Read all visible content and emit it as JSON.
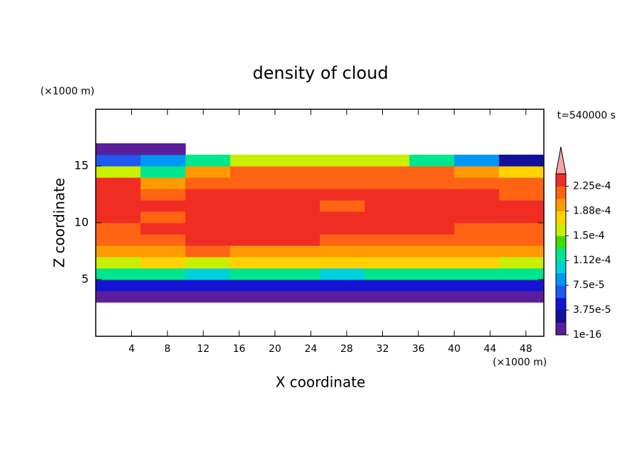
{
  "chart_data": {
    "type": "contour",
    "title": "density of cloud",
    "xlabel": "X coordinate",
    "ylabel": "Z coordinate",
    "x_unit": "(×1000 m)",
    "y_unit": "(×1000 m)",
    "annotation": "t=540000 s",
    "xlim": [
      0,
      50
    ],
    "ylim": [
      0,
      20
    ],
    "xticks": [
      4,
      8,
      12,
      16,
      20,
      24,
      28,
      32,
      36,
      40,
      44,
      48
    ],
    "yticks": [
      5,
      10,
      15
    ],
    "levels": [
      1e-16,
      1.875e-05,
      3.75e-05,
      5.625e-05,
      7.5e-05,
      9.375e-05,
      0.000112,
      0.000131,
      0.00015,
      0.000169,
      0.000188,
      0.000206,
      0.000225,
      0.000244
    ],
    "colors": [
      "#5a1e9c",
      "#14109a",
      "#1414d2",
      "#1e5af0",
      "#0096f5",
      "#00d2dc",
      "#00e68c",
      "#3cdc00",
      "#c8f000",
      "#ffd200",
      "#ff9b00",
      "#ff6414",
      "#f02d23"
    ],
    "extend_color": "#f5a5a5",
    "cticks": [
      {
        "value": 1e-16,
        "label": "1e-16"
      },
      {
        "value": 3.75e-05,
        "label": "3.75e-5"
      },
      {
        "value": 7.5e-05,
        "label": "7.5e-5"
      },
      {
        "value": 0.000112,
        "label": "1.12e-4"
      },
      {
        "value": 0.00015,
        "label": "1.5e-4"
      },
      {
        "value": 0.000188,
        "label": "1.88e-4"
      },
      {
        "value": 0.000225,
        "label": "2.25e-4"
      }
    ],
    "x": [
      2.5,
      7.5,
      12.5,
      17.5,
      22.5,
      27.5,
      32.5,
      37.5,
      42.5,
      47.5
    ],
    "z": [
      3.5,
      4.5,
      5.5,
      6.5,
      7.5,
      8.5,
      9.5,
      10.5,
      11.5,
      12.5,
      13.5,
      14.5,
      15.5,
      16.5
    ],
    "values": [
      [
        1e-05,
        1e-05,
        1e-05,
        1e-05,
        1e-05,
        1e-05,
        1e-05,
        1e-05,
        1e-05,
        1e-05
      ],
      [
        5e-05,
        5e-05,
        4e-05,
        5e-05,
        5e-05,
        5e-05,
        5e-05,
        5e-05,
        5e-05,
        5e-05
      ],
      [
        0.00012,
        0.00012,
        0.0001,
        0.00012,
        0.00012,
        0.00011,
        0.00012,
        0.00012,
        0.00012,
        0.00012
      ],
      [
        0.00016,
        0.00017,
        0.00015,
        0.00017,
        0.00017,
        0.00017,
        0.00017,
        0.00017,
        0.00017,
        0.00016
      ],
      [
        0.00019,
        0.0002,
        0.00021,
        0.0002,
        0.0002,
        0.0002,
        0.0002,
        0.0002,
        0.0002,
        0.00019
      ],
      [
        0.00021,
        0.00022,
        0.00023,
        0.00023,
        0.00023,
        0.00022,
        0.00022,
        0.00022,
        0.00022,
        0.00021
      ],
      [
        0.00022,
        0.00023,
        0.00023,
        0.00023,
        0.00023,
        0.00023,
        0.00023,
        0.00023,
        0.00022,
        0.00022
      ],
      [
        0.00023,
        0.00022,
        0.00023,
        0.00023,
        0.00023,
        0.00023,
        0.00023,
        0.00023,
        0.00023,
        0.00023
      ],
      [
        0.00023,
        0.00023,
        0.00023,
        0.00023,
        0.00023,
        0.00022,
        0.00023,
        0.00023,
        0.00023,
        0.00023
      ],
      [
        0.00023,
        0.00022,
        0.00023,
        0.00023,
        0.00023,
        0.00023,
        0.00023,
        0.00023,
        0.00023,
        0.00022
      ],
      [
        0.00023,
        0.0002,
        0.00022,
        0.00022,
        0.00021,
        0.00021,
        0.00021,
        0.00021,
        0.00021,
        0.00022
      ],
      [
        0.00015,
        0.00012,
        0.0002,
        0.00021,
        0.00021,
        0.00021,
        0.00021,
        0.00021,
        0.0002,
        0.00018
      ],
      [
        6e-05,
        8e-05,
        0.00013,
        0.00016,
        0.00015,
        0.00015,
        0.00015,
        0.00013,
        8e-05,
        3e-05
      ],
      [
        1e-05,
        1e-05,
        null,
        null,
        null,
        null,
        null,
        null,
        null,
        null
      ]
    ]
  }
}
